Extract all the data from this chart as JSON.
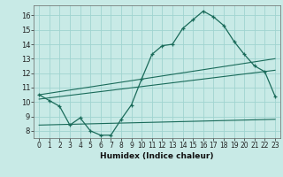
{
  "xlabel": "Humidex (Indice chaleur)",
  "background_color": "#c8eae6",
  "grid_color": "#a0d4d0",
  "line_color": "#1a6b5a",
  "xlim": [
    -0.5,
    23.5
  ],
  "ylim": [
    7.5,
    16.7
  ],
  "yticks": [
    8,
    9,
    10,
    11,
    12,
    13,
    14,
    15,
    16
  ],
  "xticks": [
    0,
    1,
    2,
    3,
    4,
    5,
    6,
    7,
    8,
    9,
    10,
    11,
    12,
    13,
    14,
    15,
    16,
    17,
    18,
    19,
    20,
    21,
    22,
    23
  ],
  "line1_x": [
    0,
    1,
    2,
    3,
    4,
    5,
    6,
    7,
    8,
    9,
    10,
    11,
    12,
    13,
    14,
    15,
    16,
    17,
    18,
    19,
    20,
    21,
    22,
    23
  ],
  "line1_y": [
    10.5,
    10.1,
    9.7,
    8.4,
    8.9,
    8.0,
    7.7,
    7.7,
    8.8,
    9.8,
    11.6,
    13.3,
    13.9,
    14.0,
    15.1,
    15.7,
    16.3,
    15.9,
    15.3,
    14.2,
    13.3,
    12.5,
    12.1,
    10.4
  ],
  "line2_x": [
    0,
    23
  ],
  "line2_y": [
    10.2,
    12.2
  ],
  "line3_x": [
    0,
    23
  ],
  "line3_y": [
    10.5,
    13.0
  ],
  "line4_x": [
    0,
    23
  ],
  "line4_y": [
    8.4,
    8.8
  ],
  "figsize": [
    3.2,
    2.0
  ],
  "dpi": 100
}
